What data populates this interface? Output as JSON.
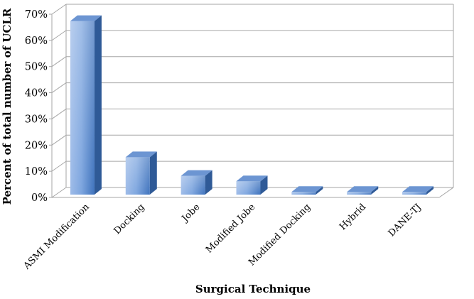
{
  "chart_data": {
    "type": "bar",
    "categories": [
      "ASMI Modification",
      "Docking",
      "Jobe",
      "Modified Jobe",
      "Modified Docking",
      "Hybrid",
      "DANE-TJ"
    ],
    "series": [
      {
        "values": [
          65,
          14,
          7,
          5,
          1,
          1,
          1
        ]
      }
    ],
    "xlabel": "Surgical Technique",
    "ylabel": "Percent of total number of UCLR",
    "ylim": [
      0,
      70
    ],
    "ytick_values": [
      0,
      10,
      20,
      30,
      40,
      50,
      60,
      70
    ],
    "ytick_labels": [
      "0%",
      "10%",
      "20%",
      "30%",
      "40%",
      "50%",
      "60%",
      "70%"
    ],
    "grid": true,
    "legend": "none",
    "colors": {
      "bar_light": "#b5cdee",
      "bar_mid": "#7fa8e2",
      "bar_dark": "#4d80c6",
      "bar_top": "#6c95d2",
      "bar_side": "#2f5a97",
      "grid": "#a6a6a6"
    }
  }
}
